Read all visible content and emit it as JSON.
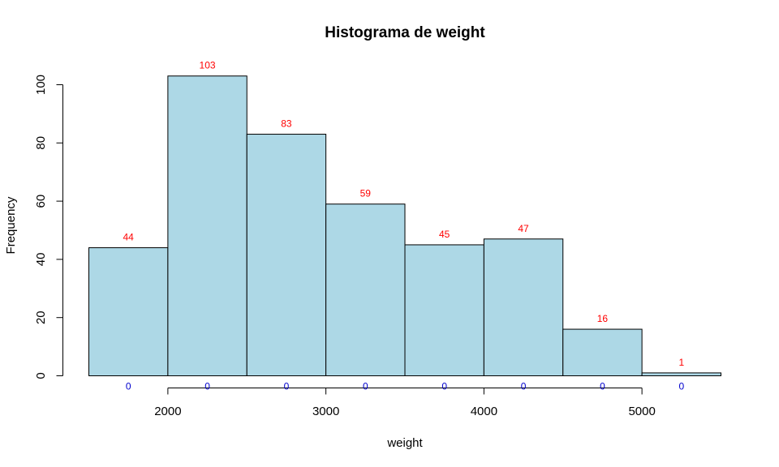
{
  "chart_data": {
    "type": "bar",
    "title": "Histograma de weight",
    "xlabel": "weight",
    "ylabel": "Frequency",
    "bins": [
      [
        1500,
        2000
      ],
      [
        2000,
        2500
      ],
      [
        2500,
        3000
      ],
      [
        3000,
        3500
      ],
      [
        3500,
        4000
      ],
      [
        4000,
        4500
      ],
      [
        4500,
        5000
      ],
      [
        5000,
        5500
      ]
    ],
    "values": [
      44,
      103,
      83,
      59,
      45,
      47,
      16,
      1
    ],
    "count_labels": [
      "44",
      "103",
      "83",
      "59",
      "45",
      "47",
      "16",
      "1"
    ],
    "zero_labels": [
      "0",
      "0",
      "0",
      "0",
      "0",
      "0",
      "0",
      "0"
    ],
    "xticks": [
      2000,
      3000,
      4000,
      5000
    ],
    "xtick_labels": [
      "2000",
      "3000",
      "4000",
      "5000"
    ],
    "yticks": [
      0,
      20,
      40,
      60,
      80,
      100
    ],
    "ytick_labels": [
      "0",
      "20",
      "40",
      "60",
      "80",
      "100"
    ],
    "xlim": [
      1500,
      5500
    ],
    "ylim": [
      0,
      103
    ],
    "grid": false,
    "bar_color": "#add8e6",
    "count_label_color": "#ff0000",
    "zero_label_color": "#0000cd"
  }
}
